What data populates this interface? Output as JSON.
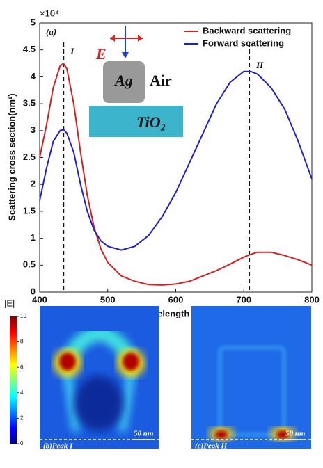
{
  "chart_data": {
    "type": "line",
    "panel_label": "(a)",
    "xlabel": "Wavelength (nm)",
    "ylabel": "Scattering cross section(nm²)",
    "y_multiplier": "×10⁴",
    "x": [
      400,
      410,
      420,
      430,
      435,
      440,
      450,
      460,
      470,
      480,
      490,
      500,
      520,
      540,
      560,
      580,
      600,
      620,
      640,
      660,
      680,
      700,
      710,
      720,
      740,
      760,
      780,
      800
    ],
    "series": [
      {
        "name": "Backward scattering",
        "color": "#d42020",
        "values": [
          2.5,
          3.1,
          3.8,
          4.2,
          4.25,
          4.15,
          3.5,
          2.6,
          1.8,
          1.2,
          0.8,
          0.55,
          0.3,
          0.2,
          0.14,
          0.13,
          0.15,
          0.2,
          0.3,
          0.4,
          0.52,
          0.65,
          0.7,
          0.74,
          0.74,
          0.68,
          0.6,
          0.5
        ]
      },
      {
        "name": "Forward scattering",
        "color": "#2020c8",
        "values": [
          1.7,
          2.3,
          2.8,
          3.0,
          3.02,
          2.95,
          2.6,
          2.0,
          1.5,
          1.15,
          0.95,
          0.85,
          0.78,
          0.85,
          1.05,
          1.4,
          1.85,
          2.4,
          2.95,
          3.5,
          3.9,
          4.1,
          4.1,
          4.05,
          3.8,
          3.4,
          2.8,
          2.1
        ]
      }
    ],
    "markers": [
      {
        "x": 435,
        "label": "I"
      },
      {
        "x": 708,
        "label": "II"
      }
    ],
    "inset": {
      "field": "E",
      "particle": "Ag",
      "medium": "Air",
      "substrate": "TiO₂"
    },
    "xlim": [
      400,
      800
    ],
    "xticks": [
      400,
      500,
      600,
      700,
      800
    ],
    "ylim": [
      0,
      5
    ],
    "yticks": [
      0,
      0.5,
      1,
      1.5,
      2,
      2.5,
      3,
      3.5,
      4,
      4.5,
      5
    ],
    "legend": "upper right"
  },
  "field_maps": {
    "colorbar": {
      "label": "|E|",
      "lim": [
        0,
        10
      ],
      "ticks": [
        0,
        2,
        4,
        6,
        8,
        10
      ]
    },
    "panels": [
      {
        "label": "(b)Peak I",
        "scale": "50 nm"
      },
      {
        "label": "(c)Peak II",
        "scale": "50 nm"
      }
    ]
  }
}
